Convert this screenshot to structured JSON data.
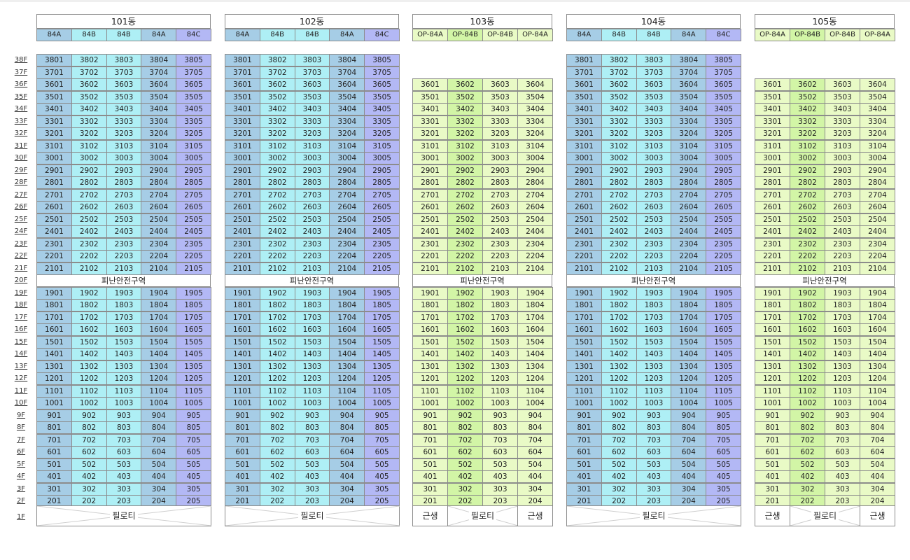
{
  "floors_top": [
    "38F",
    "37F",
    "36F",
    "35F",
    "34F",
    "33F",
    "32F",
    "31F",
    "30F",
    "29F",
    "28F",
    "27F",
    "26F",
    "25F",
    "24F",
    "23F",
    "22F",
    "21F",
    "20F",
    "19F",
    "18F",
    "17F",
    "16F",
    "15F",
    "14F",
    "13F",
    "12F",
    "11F",
    "10F",
    "9F",
    "8F",
    "7F",
    "6F",
    "5F",
    "4F",
    "3F",
    "2F"
  ],
  "floor_ground": "1F",
  "refuge_label": "피난안전구역",
  "pilotis_label": "필로티",
  "commercial_label": "근생",
  "colors": {
    "col_blue": "#a6cde6",
    "col_cyan": "#aeeff5",
    "col_purple": "#b3b8f5",
    "col_green_light": "#e9fac6",
    "col_green": "#d2f5a6"
  },
  "buildings": [
    {
      "id": "101",
      "name": "101동",
      "types": [
        "84A",
        "84B",
        "84B",
        "84A",
        "84C"
      ],
      "top_floor": 38,
      "palette": "blue",
      "ground": "pilotis"
    },
    {
      "id": "102",
      "name": "102동",
      "types": [
        "84A",
        "84B",
        "84B",
        "84A",
        "84C"
      ],
      "top_floor": 38,
      "palette": "blue",
      "ground": "pilotis"
    },
    {
      "id": "103",
      "name": "103동",
      "types": [
        "OP-84A",
        "OP-84B",
        "OP-84B",
        "OP-84A"
      ],
      "top_floor": 36,
      "palette": "green",
      "ground": "mixed"
    },
    {
      "id": "104",
      "name": "104동",
      "types": [
        "84A",
        "84B",
        "84B",
        "84A",
        "84C"
      ],
      "top_floor": 38,
      "palette": "blue",
      "ground": "pilotis"
    },
    {
      "id": "105",
      "name": "105동",
      "types": [
        "OP-84A",
        "OP-84B",
        "OP-84B",
        "OP-84A"
      ],
      "top_floor": 36,
      "palette": "green",
      "ground": "mixed"
    }
  ]
}
